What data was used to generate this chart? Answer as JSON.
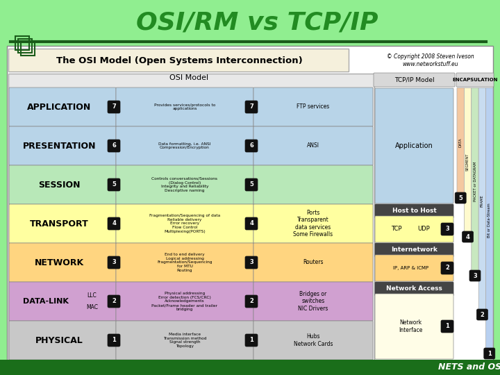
{
  "title": "OSI/RM vs TCP/IP",
  "subtitle": "The OSI Model (Open Systems Interconnection)",
  "footer": "NETS and OSs",
  "bg_color": "#90ee90",
  "title_color": "#228B22",
  "copyright": "© Copyright 2008 Steven Iveson\nwww.networkstuff.eu",
  "osi_layers": [
    {
      "num": 7,
      "name": "APPLICATION",
      "color": "#B8D4E8",
      "desc": "Provides services/protocols to\napplications",
      "example": "FTP services"
    },
    {
      "num": 6,
      "name": "PRESENTATION",
      "color": "#B8D4E8",
      "desc": "Data formatting, i.e. ANSI\nCompression/Encryption",
      "example": "ANSI"
    },
    {
      "num": 5,
      "name": "SESSION",
      "color": "#B8E8B8",
      "desc": "Controls conversations/Sessions\n(Dialog Control)\nIntegrity and Reliability\nDescriptive naming",
      "example": ""
    },
    {
      "num": 4,
      "name": "TRANSPORT",
      "color": "#FFFFA0",
      "desc": "Fragmentation/Sequencing of data\nReliable delivery\nError recovery\nFlow Control\nMultiplexing(PORTS)",
      "example": "Ports\nTransparent\ndata services\nSome Firewalls"
    },
    {
      "num": 3,
      "name": "NETWORK",
      "color": "#FFD580",
      "desc": "End to end delivery\nLogical addressing\nFragmentation/Sequencing\nfor MTU\nRouting",
      "example": "Routers"
    },
    {
      "num": 2,
      "name": "DATA-LINK",
      "color": "#D0A0D0",
      "desc": "Physical addressing\nError detection (FCS/CRC)\nAcknowledgements\nPacket/Frame header and trailer\nbridging",
      "example": "Bridges or\nswitches\nNIC Drivers"
    },
    {
      "num": 1,
      "name": "PHYSICAL",
      "color": "#C0C0C0",
      "desc": "Media interface\nTransmission method\nSignal strength\nTopology",
      "example": "Hubs\nNetwork Cards"
    }
  ],
  "encap_items": [
    {
      "num": 5,
      "label": "DATA",
      "color": "#F4C8A0"
    },
    {
      "num": 4,
      "label": "SEGMENT",
      "color": "#FFFACD"
    },
    {
      "num": 3,
      "label": "PACKET or DATAGRAM",
      "color": "#C8E8C0"
    },
    {
      "num": 2,
      "label": "FRAME",
      "color": "#C8DCF0"
    },
    {
      "num": 1,
      "label": "Bit or Data-Stream",
      "color": "#B8D0F0"
    }
  ]
}
